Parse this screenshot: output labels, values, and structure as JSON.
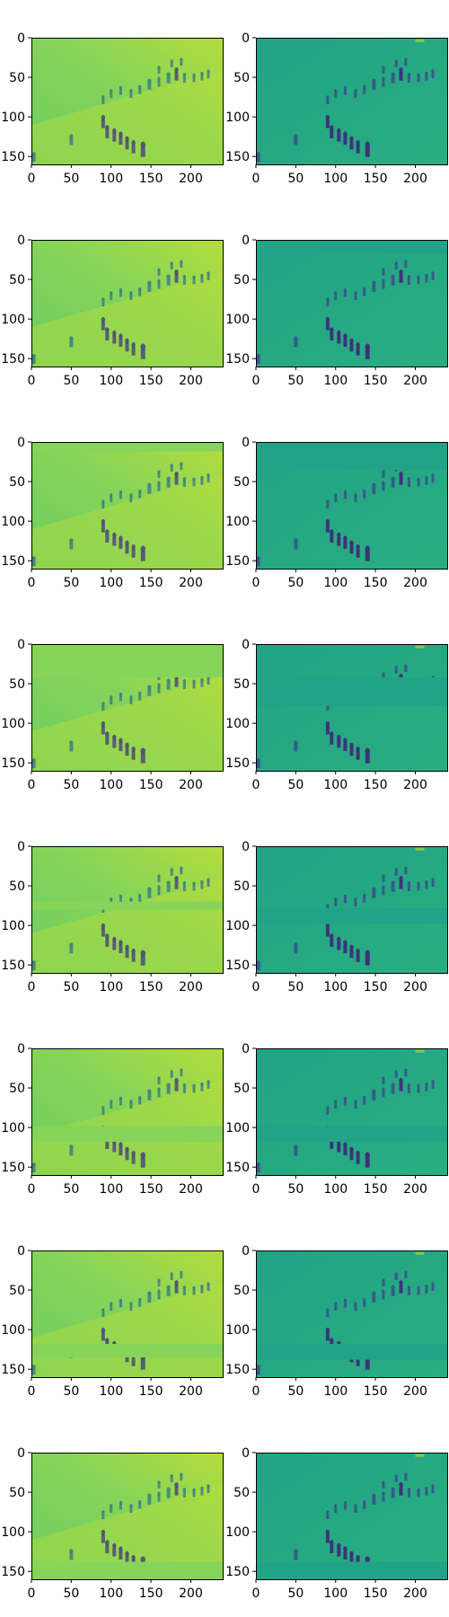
{
  "figure": {
    "rows": 8,
    "columns": 2,
    "panels": [
      {
        "row": 1,
        "left_gap": null,
        "right_gap": null
      },
      {
        "row": 2,
        "left_gap": null,
        "right_gap": [
          0,
          18
        ]
      },
      {
        "row": 3,
        "left_gap": [
          0,
          12
        ],
        "right_gap": [
          0,
          35
        ]
      },
      {
        "row": 4,
        "left_gap": [
          0,
          42
        ],
        "right_gap": [
          42,
          78
        ]
      },
      {
        "row": 5,
        "left_gap": [
          70,
          80
        ],
        "right_gap": [
          78,
          98
        ]
      },
      {
        "row": 6,
        "left_gap": [
          98,
          118
        ],
        "right_gap": [
          98,
          118
        ]
      },
      {
        "row": 7,
        "left_gap": [
          118,
          135
        ],
        "right_gap": [
          118,
          138
        ]
      },
      {
        "row": 8,
        "left_gap": [
          138,
          160
        ],
        "right_gap": [
          138,
          160
        ]
      }
    ]
  },
  "axes": {
    "xlim": [
      0,
      240
    ],
    "ylim": [
      0,
      160
    ],
    "x_ticks": [
      "0",
      "50",
      "100",
      "150",
      "200"
    ],
    "y_ticks": [
      "0",
      "50",
      "100",
      "150"
    ]
  },
  "colors": {
    "left_background_light": "#b5dd3c",
    "left_background_mid": "#86d459",
    "left_background_dark": "#6ecc60",
    "left_figures": "#2c6d8e",
    "left_figures_dark": "#3e2c83",
    "right_background": "#20a386",
    "right_background_light": "#2aae80",
    "right_figures": "#3b528b",
    "right_figures_dark": "#40267a",
    "right_highlight": "#c8e020"
  }
}
